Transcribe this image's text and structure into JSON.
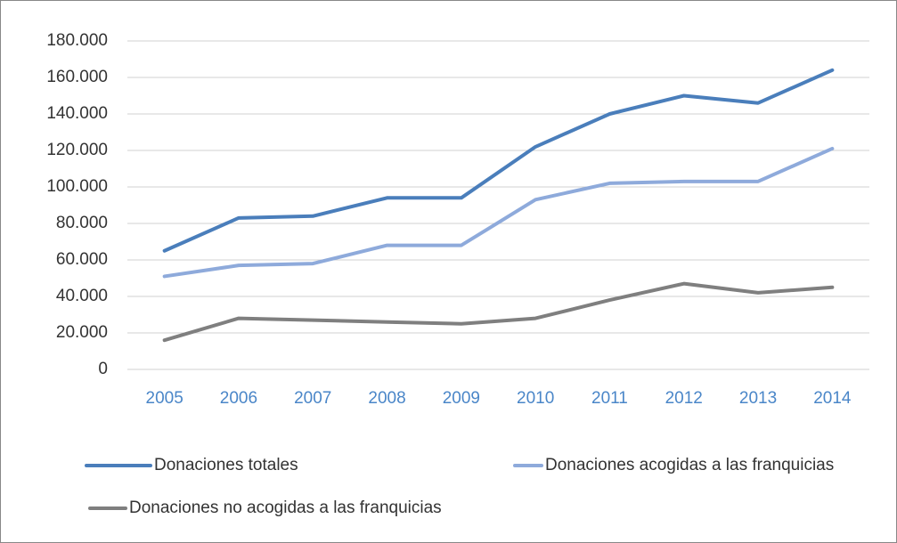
{
  "chart_data": {
    "type": "line",
    "categories": [
      "2005",
      "2006",
      "2007",
      "2008",
      "2009",
      "2010",
      "2011",
      "2012",
      "2013",
      "2014"
    ],
    "series": [
      {
        "name": "Donaciones totales",
        "color": "#4a7ebb",
        "values": [
          65000,
          83000,
          84000,
          94000,
          94000,
          122000,
          140000,
          150000,
          146000,
          164000
        ]
      },
      {
        "name": "Donaciones acogidas a las franquicias",
        "color": "#8eaadb",
        "values": [
          51000,
          57000,
          58000,
          68000,
          68000,
          93000,
          102000,
          103000,
          103000,
          121000
        ]
      },
      {
        "name": "Donaciones no acogidas a las franquicias",
        "color": "#7f7f7f",
        "values": [
          16000,
          28000,
          27000,
          26000,
          25000,
          28000,
          38000,
          47000,
          42000,
          45000
        ]
      }
    ],
    "ylim": [
      0,
      180000
    ],
    "yticks": [
      0,
      {
        "value": 20000,
        "label": "20.000"
      },
      {
        "value": 40000,
        "label": "40.000"
      },
      {
        "value": 60000,
        "label": "60.000"
      },
      {
        "value": 80000,
        "label": "80.000"
      },
      {
        "value": 100000,
        "label": "100.000"
      },
      {
        "value": 120000,
        "label": "120.000"
      },
      {
        "value": 140000,
        "label": "140.000"
      },
      {
        "value": 160000,
        "label": "160.000"
      },
      {
        "value": 180000,
        "label": "180.000"
      }
    ],
    "grid": true,
    "legend": "bottom"
  }
}
